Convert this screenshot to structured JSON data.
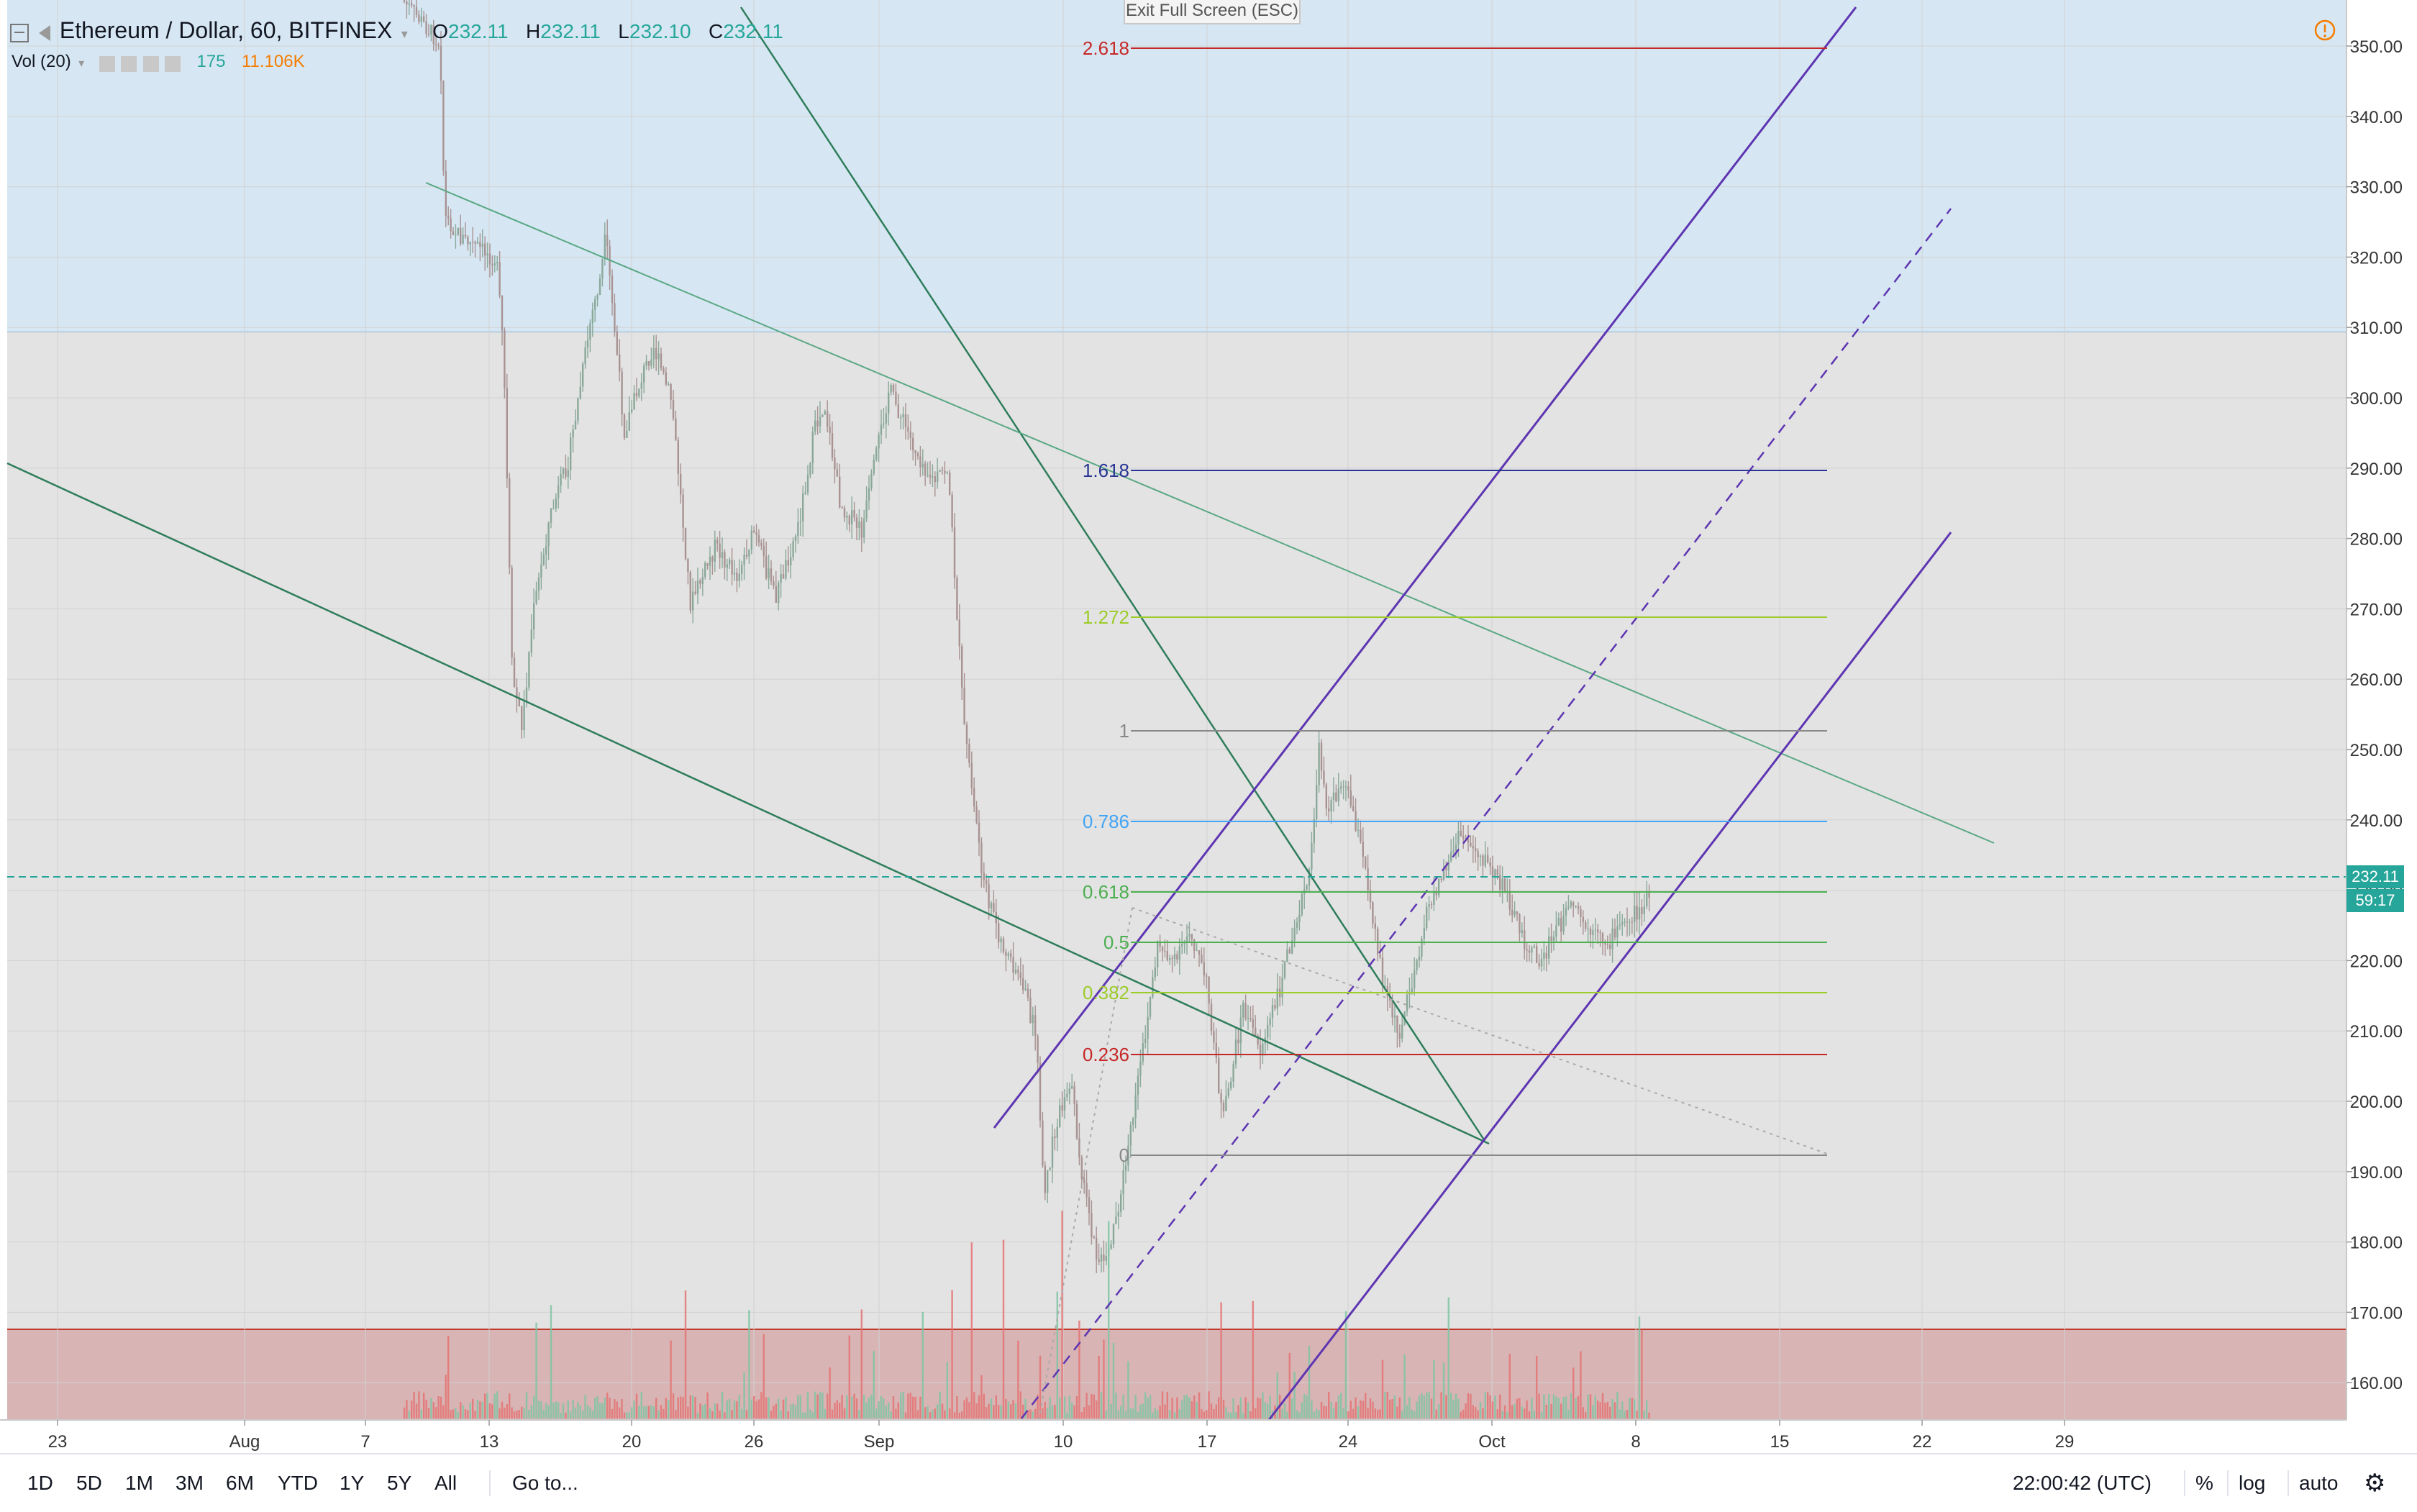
{
  "header": {
    "symbol": "Ethereum / Dollar, 60, BITFINEX",
    "ohlc": [
      {
        "label": "O",
        "value": "232.11"
      },
      {
        "label": "H",
        "value": "232.11"
      },
      {
        "label": "L",
        "value": "232.10"
      },
      {
        "label": "C",
        "value": "232.11"
      }
    ],
    "volume": {
      "label": "Vol (20)",
      "value1": "175",
      "value2": "11.106K"
    }
  },
  "exit_fullscreen": "Exit Full Screen (ESC)",
  "price_axis": {
    "ticks": [
      "350.00",
      "340.00",
      "330.00",
      "320.00",
      "310.00",
      "300.00",
      "290.00",
      "280.00",
      "270.00",
      "260.00",
      "250.00",
      "240.00",
      "230.00",
      "220.00",
      "210.00",
      "200.00",
      "190.00",
      "180.00",
      "170.00",
      "160.00"
    ],
    "last_price": "232.11",
    "countdown": "59:17"
  },
  "time_axis": {
    "ticks": [
      "23",
      "Aug",
      "7",
      "13",
      "20",
      "26",
      "Sep",
      "10",
      "17",
      "24",
      "Oct",
      "8",
      "15",
      "22",
      "29"
    ]
  },
  "fib_levels": [
    {
      "label": "2.618",
      "color": "#c62828"
    },
    {
      "label": "1.618",
      "color": "#283593"
    },
    {
      "label": "1.272",
      "color": "#9ccc29"
    },
    {
      "label": "1",
      "color": "#888888"
    },
    {
      "label": "0.786",
      "color": "#42a5f5"
    },
    {
      "label": "0.618",
      "color": "#4caf50"
    },
    {
      "label": "0.5",
      "color": "#4caf50"
    },
    {
      "label": "0.382",
      "color": "#9ccc29"
    },
    {
      "label": "0.236",
      "color": "#c62828"
    },
    {
      "label": "0",
      "color": "#888888"
    }
  ],
  "toolbar": {
    "ranges": [
      "1D",
      "5D",
      "1M",
      "3M",
      "6M",
      "YTD",
      "1Y",
      "5Y",
      "All"
    ],
    "goto": "Go to...",
    "time": "22:00:42 (UTC)",
    "percent": "%",
    "log": "log",
    "auto": "auto"
  },
  "colors": {
    "up": "#26a69a",
    "down": "#ef5350",
    "zone_top": "#d6e7f3",
    "zone_mid": "#e3e3e3",
    "zone_bottom": "#d8b4b4",
    "channel": "#5e35b1",
    "trend": "#2e7d5b"
  }
}
